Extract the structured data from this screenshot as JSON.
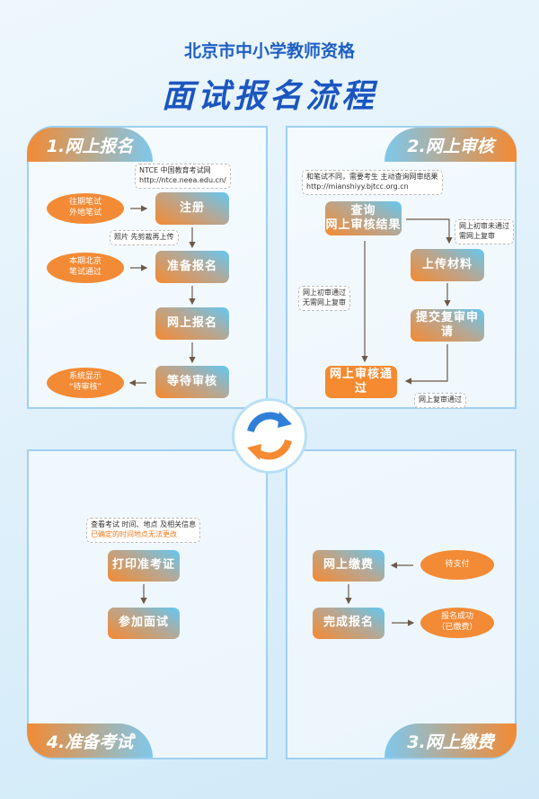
{
  "header": {
    "subtitle": "北京市中小学教师资格",
    "title": "面试报名流程"
  },
  "panel1": {
    "tab": "1.网上报名",
    "note_ntce_1": "NTCE 中国教育考试网",
    "note_ntce_2": "http://ntce.neea.edu.cn/",
    "note_photo": "照片 先剪裁再上传",
    "steps": [
      "注册",
      "准备报名",
      "网上报名",
      "等待审核"
    ],
    "ovals": [
      [
        "往期笔试",
        "外地笔试"
      ],
      [
        "本期北京",
        "笔试通过"
      ],
      [
        "系统显示",
        "“待审核”"
      ]
    ]
  },
  "panel2": {
    "tab": "2.网上审核",
    "note_top_1": "和笔试不同，需要考生 主动查询网审结果",
    "note_top_2": "http://mianshiyy.bjtcc.org.cn",
    "query": [
      "查询",
      "网上审核结果"
    ],
    "upload": "上传材料",
    "submit": "提交复审申请",
    "passed": "网上审核通过",
    "note_fail": [
      "网上初审未通过",
      "需网上复审"
    ],
    "note_pass": [
      "网上初审通过",
      "无需网上复审"
    ],
    "note_review": "网上复审通过"
  },
  "panel3": {
    "tab": "3.网上缴费",
    "pay": "网上缴费",
    "complete": "完成报名",
    "pending": "待支付",
    "success": [
      "报名成功",
      "（已缴费）"
    ]
  },
  "panel4": {
    "tab": "4.准备考试",
    "note_1": "查看考试 时间、地点 及相关信息",
    "note_2": "已确定的时间地点无法更改",
    "print": "打印准考证",
    "attend": "参加面试"
  },
  "colors": {
    "orange": "#f58a30",
    "blue": "#1b56c0",
    "accent_blue": "#63c8f2"
  }
}
